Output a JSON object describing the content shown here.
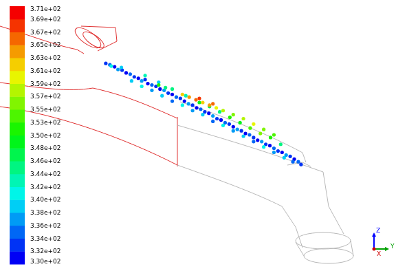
{
  "chart_data": {
    "type": "scatter",
    "x": [
      152,
      158,
      165,
      170,
      176,
      182,
      188,
      194,
      200,
      205,
      210,
      214,
      220,
      226,
      232,
      238,
      244,
      250,
      256,
      262,
      268,
      274,
      280,
      286,
      292,
      298,
      304,
      310,
      316,
      322,
      328,
      334,
      340,
      346,
      352,
      358,
      364,
      370,
      376,
      382,
      388,
      394,
      400,
      406,
      412,
      418,
      424,
      430,
      436,
      440,
      190,
      205,
      220,
      235,
      250,
      265,
      280,
      295,
      310,
      325,
      340,
      355,
      370,
      385,
      400,
      415,
      428,
      210,
      230,
      250,
      270,
      290,
      305,
      320,
      335,
      350,
      365,
      380,
      395,
      410,
      265,
      275,
      285,
      295,
      305,
      315,
      325,
      340,
      355,
      370,
      385,
      400,
      290,
      310,
      175,
      160,
      240,
      230
    ],
    "y": [
      304,
      302,
      299,
      295,
      294,
      290,
      288,
      284,
      282,
      278,
      280,
      274,
      272,
      270,
      266,
      264,
      260,
      258,
      254,
      252,
      248,
      244,
      242,
      238,
      236,
      232,
      230,
      226,
      222,
      220,
      216,
      214,
      210,
      206,
      204,
      200,
      198,
      194,
      190,
      188,
      184,
      182,
      178,
      174,
      172,
      168,
      166,
      162,
      158,
      154,
      278,
      270,
      264,
      256,
      248,
      242,
      234,
      228,
      218,
      212,
      204,
      196,
      188,
      180,
      172,
      164,
      158,
      286,
      276,
      266,
      256,
      246,
      240,
      232,
      224,
      216,
      208,
      200,
      194,
      184,
      258,
      254,
      250,
      246,
      242,
      238,
      234,
      228,
      222,
      214,
      206,
      198,
      252,
      244,
      298,
      300,
      268,
      272
    ],
    "values": [
      334,
      336,
      332,
      338,
      334,
      332,
      336,
      334,
      332,
      338,
      334,
      332,
      336,
      334,
      332,
      338,
      334,
      332,
      336,
      334,
      332,
      338,
      334,
      332,
      336,
      334,
      332,
      338,
      334,
      332,
      336,
      334,
      332,
      338,
      334,
      332,
      336,
      334,
      332,
      338,
      334,
      332,
      336,
      334,
      332,
      338,
      334,
      332,
      336,
      334,
      340,
      342,
      338,
      340,
      336,
      342,
      338,
      340,
      336,
      342,
      338,
      340,
      336,
      342,
      338,
      340,
      336,
      344,
      340,
      346,
      344,
      350,
      348,
      346,
      352,
      350,
      354,
      356,
      352,
      346,
      362,
      364,
      366,
      362,
      364,
      360,
      358,
      356,
      358,
      360,
      356,
      354,
      368,
      366,
      340,
      342,
      346,
      352
    ],
    "xlim": [
      0,
      576
    ],
    "ylim": [
      0,
      394
    ],
    "grid": false,
    "tick_labels": false,
    "marker": "circle",
    "colorbar": {
      "range": [
        330,
        371
      ],
      "ticks": [
        {
          "value": 371,
          "label": "3.71e+02"
        },
        {
          "value": 368.95,
          "label": "3.69e+02"
        },
        {
          "value": 366.9,
          "label": "3.67e+02"
        },
        {
          "value": 364.85,
          "label": "3.65e+02"
        },
        {
          "value": 362.8,
          "label": "3.63e+02"
        },
        {
          "value": 360.75,
          "label": "3.61e+02"
        },
        {
          "value": 358.7,
          "label": "3.59e+02"
        },
        {
          "value": 356.65,
          "label": "3.57e+02"
        },
        {
          "value": 354.6,
          "label": "3.55e+02"
        },
        {
          "value": 352.55,
          "label": "3.53e+02"
        },
        {
          "value": 350.5,
          "label": "3.50e+02"
        },
        {
          "value": 348.45,
          "label": "3.48e+02"
        },
        {
          "value": 346.4,
          "label": "3.46e+02"
        },
        {
          "value": 344.35,
          "label": "3.44e+02"
        },
        {
          "value": 342.3,
          "label": "3.42e+02"
        },
        {
          "value": 340.25,
          "label": "3.40e+02"
        },
        {
          "value": 338.2,
          "label": "3.38e+02"
        },
        {
          "value": 336.15,
          "label": "3.36e+02"
        },
        {
          "value": 334.1,
          "label": "3.34e+02"
        },
        {
          "value": 332.05,
          "label": "3.32e+02"
        },
        {
          "value": 330,
          "label": "3.30e+02"
        }
      ]
    },
    "axes_triad": {
      "x": "X",
      "y": "Y",
      "z": "Z"
    }
  }
}
